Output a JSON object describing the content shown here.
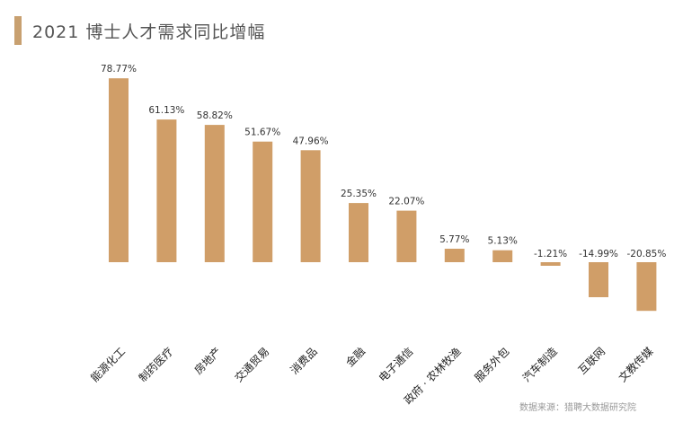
{
  "title": "2021 博士人才需求同比增幅",
  "source": "数据来源：猎聘大数据研究院",
  "colors": {
    "bar": "#d09e68",
    "accent": "#c8a070"
  },
  "chart_data": {
    "type": "bar",
    "title": "2021 博士人才需求同比增幅",
    "categories": [
      "能源化工",
      "制药医疗",
      "房地产",
      "交通贸易",
      "消费品",
      "金融",
      "电子通信",
      "政府 · 农林牧渔",
      "服务外包",
      "汽车制造",
      "互联网",
      "文教传媒"
    ],
    "values": [
      78.77,
      61.13,
      58.82,
      51.67,
      47.96,
      25.35,
      22.07,
      5.77,
      5.13,
      -1.21,
      -14.99,
      -20.85
    ],
    "labels": [
      "78.77%",
      "61.13%",
      "58.82%",
      "51.67%",
      "47.96%",
      "25.35%",
      "22.07%",
      "5.77%",
      "5.13%",
      "-1.21%",
      "-14.99%",
      "-20.85%"
    ],
    "grid": false,
    "legend": "none"
  }
}
